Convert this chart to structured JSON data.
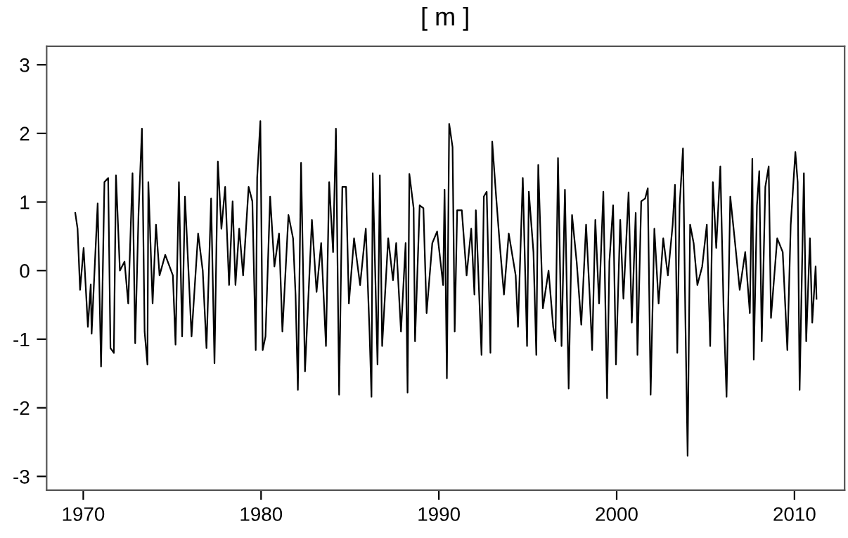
{
  "chart_data": {
    "type": "line",
    "title": "[ m ]",
    "series": [
      {
        "color": "#000000",
        "x": [
          1969.55,
          1969.68,
          1969.82,
          1970.02,
          1970.26,
          1970.42,
          1970.47,
          1970.81,
          1971.0,
          1971.19,
          1971.4,
          1971.53,
          1971.72,
          1971.84,
          1972.06,
          1972.32,
          1972.53,
          1972.77,
          1972.92,
          1973.11,
          1973.3,
          1973.45,
          1973.61,
          1973.66,
          1973.9,
          1974.09,
          1974.29,
          1974.61,
          1975.04,
          1975.19,
          1975.38,
          1975.56,
          1975.72,
          1975.93,
          1976.09,
          1976.46,
          1976.72,
          1976.93,
          1977.19,
          1977.38,
          1977.57,
          1977.77,
          1977.98,
          1978.2,
          1978.4,
          1978.56,
          1978.77,
          1978.99,
          1979.3,
          1979.51,
          1979.7,
          1979.78,
          1979.96,
          1980.09,
          1980.25,
          1980.51,
          1980.75,
          1981.01,
          1981.2,
          1981.54,
          1981.8,
          1981.94,
          1982.07,
          1982.25,
          1982.47,
          1982.86,
          1983.12,
          1983.38,
          1983.65,
          1983.83,
          1984.05,
          1984.21,
          1984.39,
          1984.57,
          1984.78,
          1984.94,
          1985.23,
          1985.57,
          1985.89,
          1986.1,
          1986.21,
          1986.28,
          1986.55,
          1986.68,
          1986.81,
          1987.15,
          1987.42,
          1987.6,
          1987.87,
          1988.13,
          1988.24,
          1988.34,
          1988.58,
          1988.66,
          1988.92,
          1989.13,
          1989.31,
          1989.63,
          1989.9,
          1990.24,
          1990.32,
          1990.45,
          1990.58,
          1990.77,
          1990.89,
          1991.03,
          1991.29,
          1991.56,
          1991.82,
          1992.0,
          1992.08,
          1992.4,
          1992.53,
          1992.69,
          1992.9,
          1993.0,
          1993.22,
          1993.42,
          1993.66,
          1993.93,
          1994.32,
          1994.45,
          1994.72,
          1994.96,
          1995.06,
          1995.32,
          1995.48,
          1995.59,
          1995.85,
          1996.17,
          1996.43,
          1996.56,
          1996.7,
          1996.9,
          1997.09,
          1997.3,
          1997.49,
          1997.75,
          1998.01,
          1998.28,
          1998.48,
          1998.62,
          1998.8,
          1999.01,
          1999.25,
          1999.46,
          1999.59,
          1999.8,
          1999.96,
          2000.2,
          2000.38,
          2000.67,
          2000.85,
          2001.07,
          2001.17,
          2001.38,
          2001.6,
          2001.75,
          2001.91,
          2002.12,
          2002.36,
          2002.62,
          2002.88,
          2003.15,
          2003.28,
          2003.41,
          2003.54,
          2003.73,
          2003.86,
          2003.99,
          2004.13,
          2004.33,
          2004.54,
          2004.81,
          2005.07,
          2005.26,
          2005.41,
          2005.6,
          2005.83,
          2006.02,
          2006.18,
          2006.39,
          2006.66,
          2006.92,
          2007.23,
          2007.49,
          2007.63,
          2007.71,
          2007.89,
          2008.02,
          2008.16,
          2008.36,
          2008.55,
          2008.68,
          2009.03,
          2009.34,
          2009.6,
          2009.79,
          2010.05,
          2010.18,
          2010.29,
          2010.53,
          2010.66,
          2010.87,
          2011.0,
          2011.19,
          2011.24
        ],
        "values": [
          0.84,
          0.61,
          -0.28,
          0.33,
          -0.82,
          -0.2,
          -0.92,
          0.98,
          -1.4,
          1.29,
          1.35,
          -1.13,
          -1.2,
          1.39,
          0,
          0.13,
          -0.48,
          1.42,
          -1.06,
          0.84,
          2.07,
          -0.89,
          -1.37,
          1.29,
          -0.48,
          0.67,
          -0.07,
          0.23,
          -0.07,
          -1.08,
          1.29,
          -0.96,
          1.08,
          -0.07,
          -0.96,
          0.54,
          0,
          -1.13,
          1.05,
          -1.35,
          1.59,
          0.61,
          1.22,
          -0.21,
          1.01,
          -0.21,
          0.61,
          -0.07,
          1.22,
          1.01,
          -1.16,
          1.35,
          2.18,
          -1.16,
          -0.96,
          1.08,
          0.06,
          0.54,
          -0.89,
          0.81,
          0.47,
          -0.35,
          -1.74,
          1.57,
          -1.47,
          0.74,
          -0.31,
          0.4,
          -1.1,
          1.29,
          0.27,
          2.07,
          -1.81,
          1.22,
          1.22,
          -0.48,
          0.47,
          -0.21,
          0.61,
          -0.89,
          -1.84,
          1.42,
          -1.37,
          1.39,
          -1.1,
          0.47,
          -0.14,
          0.4,
          -0.89,
          0.4,
          -1.78,
          1.41,
          0.91,
          -1.03,
          0.95,
          0.91,
          -0.62,
          0.4,
          0.57,
          -0.21,
          1.18,
          -1.57,
          2.14,
          1.8,
          -0.89,
          0.88,
          0.88,
          -0.07,
          0.61,
          -0.35,
          0.88,
          -1.23,
          1.08,
          1.15,
          -1.2,
          1.88,
          1.08,
          0.4,
          -0.35,
          0.54,
          -0.07,
          -0.82,
          1.35,
          -1.1,
          1.15,
          0.27,
          -1.23,
          1.54,
          -0.55,
          0,
          -0.82,
          -1.03,
          1.64,
          -1.1,
          1.18,
          -1.72,
          0.81,
          0.13,
          -0.79,
          0.67,
          -0.35,
          -1.16,
          0.74,
          -0.48,
          1.15,
          -1.86,
          0.13,
          0.95,
          -1.37,
          0.74,
          -0.41,
          1.14,
          -0.76,
          0.84,
          -1.23,
          1.01,
          1.05,
          1.2,
          -1.81,
          0.61,
          -0.48,
          0.47,
          -0.07,
          0.67,
          1.25,
          -1.2,
          0.95,
          1.78,
          -0.62,
          -2.7,
          0.67,
          0.4,
          -0.21,
          0.06,
          0.67,
          -1.1,
          1.29,
          0.33,
          1.52,
          -0.62,
          -1.84,
          1.08,
          0.4,
          -0.28,
          0.27,
          -0.62,
          1.63,
          -1.3,
          0.95,
          1.45,
          -1.03,
          1.22,
          1.52,
          -0.69,
          0.47,
          0.27,
          -1.16,
          0.67,
          1.73,
          1.29,
          -1.74,
          1.42,
          -1.03,
          0.47,
          -0.76,
          0.06,
          -0.41
        ]
      }
    ],
    "xlim": [
      1967.94,
      2012.82
    ],
    "ylim": [
      -3.2,
      3.27
    ],
    "xticks": [
      1970,
      1980,
      1990,
      2000,
      2010
    ],
    "yticks": [
      -3,
      -2,
      -1,
      0,
      1,
      2,
      3
    ],
    "grid": false,
    "legend": false,
    "marker": "none",
    "line_style": "solid"
  }
}
